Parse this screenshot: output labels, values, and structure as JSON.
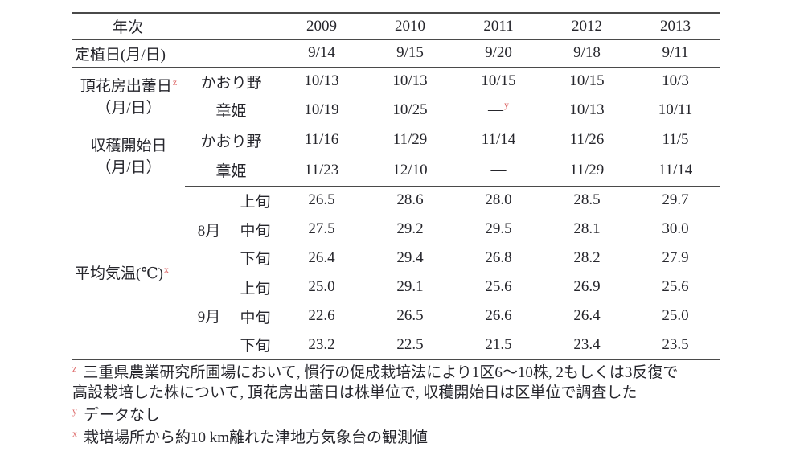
{
  "colors": {
    "footnote_marker": "#dd6666",
    "rule": "#4a4a4a",
    "text": "#26262c"
  },
  "table": {
    "year_header": {
      "label": "年次",
      "years": [
        "2009",
        "2010",
        "2011",
        "2012",
        "2013"
      ]
    },
    "planting": {
      "label": "定植日(月/日)",
      "values": [
        "9/14",
        "9/15",
        "9/20",
        "9/18",
        "9/11"
      ]
    },
    "budding": {
      "label_line1": "頂花房出蕾日",
      "label_sup": "z",
      "label_line2": "（月/日）",
      "kaorino": {
        "label": "かおり野",
        "values": [
          "10/13",
          "10/13",
          "10/15",
          "10/15",
          "10/3"
        ]
      },
      "akihime": {
        "label": "章姫",
        "values": [
          "10/19",
          "10/25",
          "—",
          "10/13",
          "10/11"
        ],
        "missing_sup": "y"
      }
    },
    "harvest": {
      "label_line1": "収穫開始日",
      "label_line2": "（月/日）",
      "kaorino": {
        "label": "かおり野",
        "values": [
          "11/16",
          "11/29",
          "11/14",
          "11/26",
          "11/5"
        ]
      },
      "akihime": {
        "label": "章姫",
        "values": [
          "11/23",
          "12/10",
          "—",
          "11/29",
          "11/14"
        ]
      }
    },
    "temperature": {
      "label": "平均気温(℃)",
      "label_sup": "x",
      "aug": {
        "label": "8月",
        "periods": [
          {
            "label": "上旬",
            "values": [
              "26.5",
              "28.6",
              "28.0",
              "28.5",
              "29.7"
            ]
          },
          {
            "label": "中旬",
            "values": [
              "27.5",
              "29.2",
              "29.5",
              "28.1",
              "30.0"
            ]
          },
          {
            "label": "下旬",
            "values": [
              "26.4",
              "29.4",
              "26.8",
              "28.2",
              "27.9"
            ]
          }
        ]
      },
      "sep": {
        "label": "9月",
        "periods": [
          {
            "label": "上旬",
            "values": [
              "25.0",
              "29.1",
              "25.6",
              "26.9",
              "25.6"
            ]
          },
          {
            "label": "中旬",
            "values": [
              "22.6",
              "26.5",
              "26.6",
              "26.4",
              "25.0"
            ]
          },
          {
            "label": "下旬",
            "values": [
              "23.2",
              "22.5",
              "21.5",
              "23.4",
              "23.5"
            ]
          }
        ]
      }
    }
  },
  "footnotes": [
    {
      "sup": "z",
      "line1": "三重県農業研究所圃場において, 慣行の促成栽培法により1区6～10株, 2もしくは3反復で",
      "line2": "高設栽培した株について, 頂花房出蕾日は株単位で, 収穫開始日は区単位で調査した"
    },
    {
      "sup": "y",
      "text": "データなし"
    },
    {
      "sup": "x",
      "text": "栽培場所から約10 km離れた津地方気象台の観測値"
    }
  ]
}
